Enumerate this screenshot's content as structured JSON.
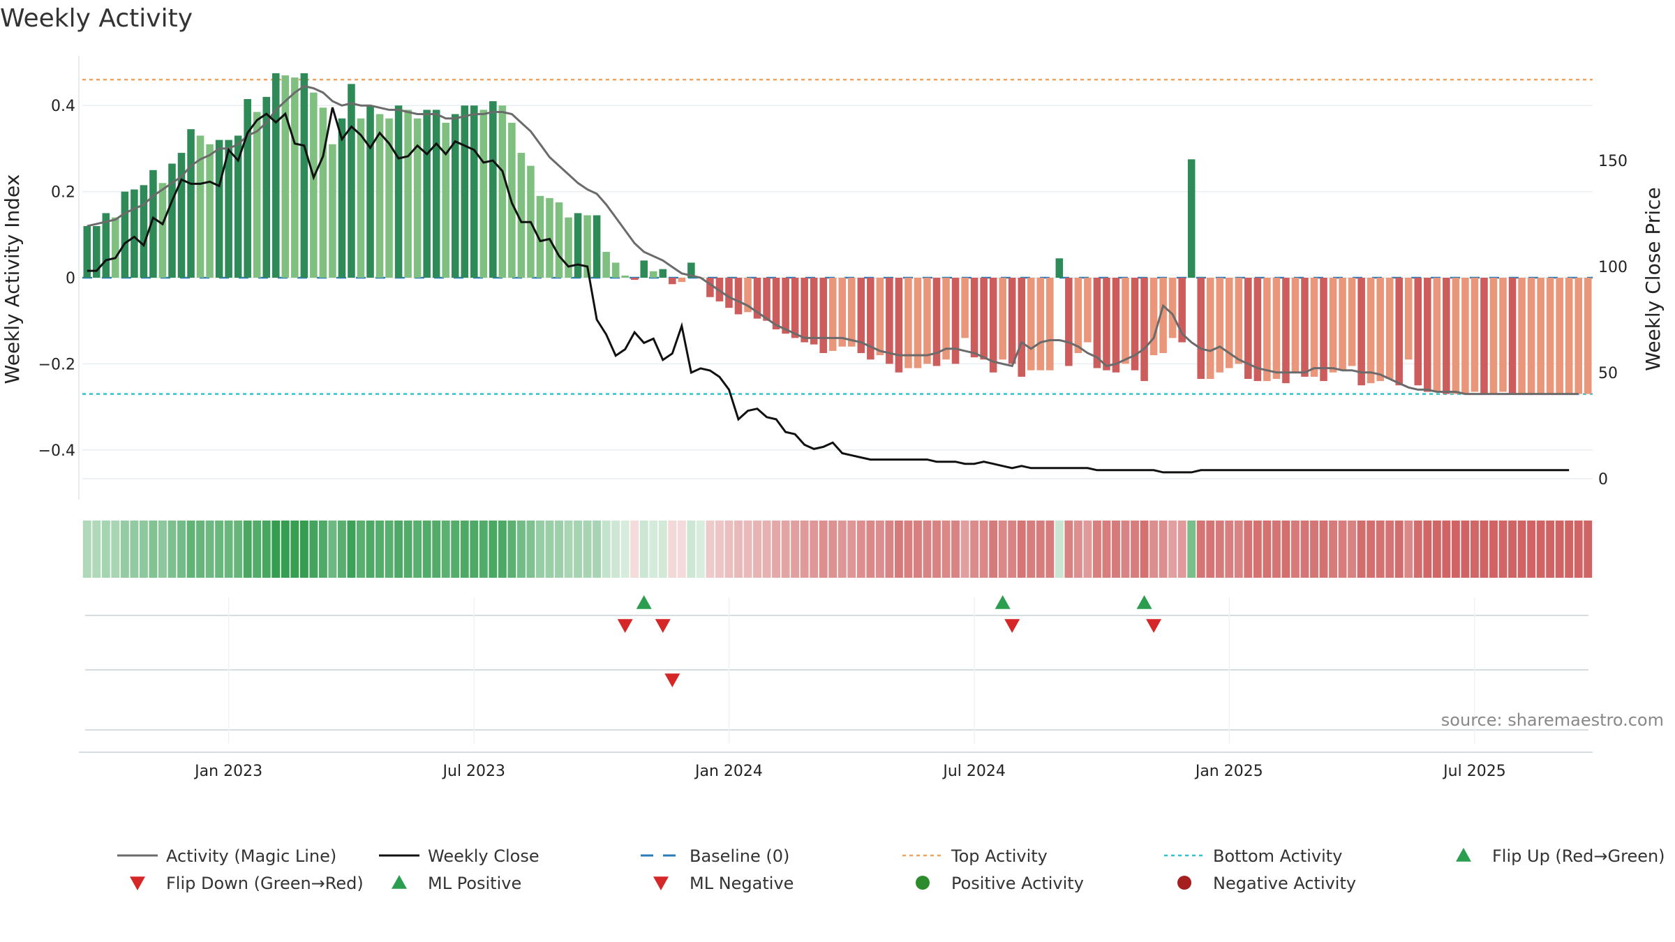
{
  "chart_data": {
    "type": "bar",
    "title": "Weekly Activity",
    "ylabel": "Weekly Activity Index",
    "y2label": "Weekly Close Price",
    "ylim": [
      -0.5,
      0.52
    ],
    "y2lim": [
      0,
      190
    ],
    "yticks": [
      {
        "v": -0.4,
        "label": "−0.4"
      },
      {
        "v": -0.2,
        "label": "−0.2"
      },
      {
        "v": 0,
        "label": "0"
      },
      {
        "v": 0.2,
        "label": "0.2"
      },
      {
        "v": 0.4,
        "label": "0.4"
      }
    ],
    "y2ticks": [
      {
        "v": 0,
        "label": "0"
      },
      {
        "v": 50,
        "label": "50"
      },
      {
        "v": 100,
        "label": "100"
      },
      {
        "v": 150,
        "label": "150"
      }
    ],
    "xticks": [
      {
        "week": 15,
        "label": "Jan 2023"
      },
      {
        "week": 41,
        "label": "Jul 2023"
      },
      {
        "week": 68,
        "label": "Jan 2024"
      },
      {
        "week": 94,
        "label": "Jul 2024"
      },
      {
        "week": 121,
        "label": "Jan 2025"
      },
      {
        "week": 147,
        "label": "Jul 2025"
      }
    ],
    "top_activity": 0.46,
    "bottom_activity": -0.27,
    "activity_values": [
      0.12,
      0.12,
      0.15,
      0.14,
      0.2,
      0.205,
      0.215,
      0.25,
      0.22,
      0.265,
      0.29,
      0.345,
      0.33,
      0.31,
      0.32,
      0.32,
      0.33,
      0.415,
      0.385,
      0.42,
      0.475,
      0.47,
      0.465,
      0.475,
      0.43,
      0.395,
      0.31,
      0.37,
      0.45,
      0.37,
      0.4,
      0.38,
      0.37,
      0.4,
      0.39,
      0.37,
      0.39,
      0.39,
      0.36,
      0.38,
      0.4,
      0.4,
      0.39,
      0.41,
      0.4,
      0.36,
      0.29,
      0.26,
      0.19,
      0.185,
      0.175,
      0.14,
      0.15,
      0.145,
      0.145,
      0.06,
      0.035,
      0.005,
      -0.005,
      0.04,
      0.015,
      0.02,
      -0.015,
      -0.01,
      0.035,
      -0.0,
      -0.045,
      -0.055,
      -0.07,
      -0.085,
      -0.08,
      -0.095,
      -0.1,
      -0.12,
      -0.13,
      -0.14,
      -0.15,
      -0.155,
      -0.175,
      -0.17,
      -0.16,
      -0.16,
      -0.175,
      -0.19,
      -0.18,
      -0.2,
      -0.22,
      -0.21,
      -0.21,
      -0.2,
      -0.205,
      -0.19,
      -0.2,
      -0.14,
      -0.185,
      -0.19,
      -0.22,
      -0.19,
      -0.2,
      -0.23,
      -0.215,
      -0.215,
      -0.215,
      0.045,
      -0.205,
      -0.175,
      -0.15,
      -0.21,
      -0.215,
      -0.22,
      -0.2,
      -0.215,
      -0.24,
      -0.18,
      -0.175,
      -0.14,
      -0.15,
      0.275,
      -0.235,
      -0.235,
      -0.22,
      -0.21,
      -0.2,
      -0.235,
      -0.24,
      -0.24,
      -0.235,
      -0.245,
      -0.22,
      -0.23,
      -0.23,
      -0.24,
      -0.22,
      -0.215,
      -0.205,
      -0.25,
      -0.245,
      -0.24,
      -0.235,
      -0.25,
      -0.19,
      -0.25,
      -0.265,
      -0.265,
      -0.27,
      -0.27,
      -0.27,
      -0.265,
      -0.27,
      -0.27,
      -0.265,
      -0.27,
      -0.27,
      -0.27,
      -0.27,
      -0.27,
      -0.27,
      -0.27,
      -0.27,
      -0.27
    ],
    "magic_line": [
      0.12,
      0.125,
      0.13,
      0.135,
      0.15,
      0.16,
      0.17,
      0.19,
      0.205,
      0.22,
      0.235,
      0.26,
      0.275,
      0.285,
      0.3,
      0.3,
      0.31,
      0.33,
      0.34,
      0.36,
      0.39,
      0.41,
      0.43,
      0.445,
      0.44,
      0.43,
      0.41,
      0.4,
      0.405,
      0.4,
      0.4,
      0.395,
      0.39,
      0.39,
      0.385,
      0.38,
      0.38,
      0.38,
      0.37,
      0.37,
      0.375,
      0.38,
      0.38,
      0.385,
      0.385,
      0.38,
      0.36,
      0.34,
      0.31,
      0.28,
      0.26,
      0.24,
      0.22,
      0.205,
      0.195,
      0.17,
      0.14,
      0.11,
      0.08,
      0.06,
      0.05,
      0.04,
      0.025,
      0.01,
      0.005,
      0.0,
      -0.015,
      -0.03,
      -0.045,
      -0.055,
      -0.065,
      -0.08,
      -0.095,
      -0.11,
      -0.12,
      -0.13,
      -0.14,
      -0.14,
      -0.14,
      -0.14,
      -0.14,
      -0.145,
      -0.15,
      -0.16,
      -0.17,
      -0.175,
      -0.18,
      -0.18,
      -0.18,
      -0.18,
      -0.175,
      -0.165,
      -0.165,
      -0.17,
      -0.175,
      -0.185,
      -0.195,
      -0.2,
      -0.205,
      -0.15,
      -0.165,
      -0.15,
      -0.145,
      -0.145,
      -0.15,
      -0.16,
      -0.175,
      -0.185,
      -0.205,
      -0.2,
      -0.19,
      -0.18,
      -0.165,
      -0.14,
      -0.065,
      -0.085,
      -0.13,
      -0.15,
      -0.165,
      -0.17,
      -0.16,
      -0.175,
      -0.19,
      -0.2,
      -0.21,
      -0.215,
      -0.22,
      -0.22,
      -0.22,
      -0.22,
      -0.21,
      -0.21,
      -0.21,
      -0.215,
      -0.215,
      -0.22,
      -0.22,
      -0.225,
      -0.235,
      -0.245,
      -0.255,
      -0.26,
      -0.26,
      -0.265,
      -0.265,
      -0.265,
      -0.27,
      -0.27,
      -0.27,
      -0.27,
      -0.27,
      -0.27,
      -0.27,
      -0.27,
      -0.27,
      -0.27,
      -0.27,
      -0.27,
      -0.27
    ],
    "weekly_close": [
      98,
      98,
      103,
      104,
      111,
      114,
      110,
      123,
      120,
      131,
      141,
      139,
      139,
      140,
      138,
      155,
      150,
      163,
      169,
      172,
      168,
      172,
      158,
      157,
      142,
      152,
      175,
      160,
      166,
      162,
      156,
      163,
      158,
      151,
      152,
      157,
      153,
      158,
      153,
      159,
      157,
      155,
      149,
      150,
      145,
      130,
      121,
      121,
      112,
      113,
      105,
      100,
      101,
      100,
      75,
      68,
      58,
      61,
      69,
      64,
      66,
      56,
      59,
      72,
      50,
      52,
      51,
      48,
      42,
      28,
      32,
      33,
      29,
      28,
      22,
      21,
      16,
      14,
      15,
      17,
      12,
      11,
      10,
      9,
      9,
      9,
      9,
      9,
      9,
      9,
      8,
      8,
      8,
      7,
      7,
      8,
      7,
      6,
      5,
      6,
      5,
      5,
      5,
      5,
      5,
      5,
      5,
      4,
      4,
      4,
      4,
      4,
      4,
      4,
      3,
      3,
      3,
      3,
      4,
      4,
      4,
      4,
      4,
      4,
      4,
      4,
      4,
      4,
      4,
      4,
      4,
      4,
      4,
      4,
      4,
      4,
      4,
      4,
      4,
      4,
      4,
      4,
      4,
      4,
      4,
      4,
      4,
      4,
      4,
      4,
      4,
      4,
      4,
      4,
      4,
      4,
      4,
      4
    ],
    "flip_up_weeks": [
      59,
      97,
      112
    ],
    "flip_down_weeks": [
      57,
      61,
      98,
      113
    ],
    "ml_negative_weeks": [
      62
    ],
    "legend": [
      {
        "label": "Activity (Magic Line)",
        "marker": "line",
        "color": "#6b6b6b"
      },
      {
        "label": "Weekly Close",
        "marker": "line",
        "color": "#111111"
      },
      {
        "label": "Baseline (0)",
        "marker": "dash",
        "color": "#2b7bb9"
      },
      {
        "label": "Top Activity",
        "marker": "dot-line",
        "color": "#f0a35e"
      },
      {
        "label": "Bottom Activity",
        "marker": "dot-line",
        "color": "#2ec4cf"
      },
      {
        "label": "Flip Up (Red→Green)",
        "marker": "tri-up",
        "color": "#2a9d4f"
      },
      {
        "label": "Flip Down (Green→Red)",
        "marker": "tri-down",
        "color": "#d62728"
      },
      {
        "label": "ML Positive",
        "marker": "tri-up",
        "color": "#2a9d4f"
      },
      {
        "label": "ML Negative",
        "marker": "tri-down",
        "color": "#d62728"
      },
      {
        "label": "Positive Activity",
        "marker": "circle",
        "color": "#2c8c2c"
      },
      {
        "label": "Negative Activity",
        "marker": "circle",
        "color": "#a51f1f"
      }
    ],
    "source_text": "source: sharemaestro.com"
  },
  "colors": {
    "pos_dark": "#2e8b57",
    "pos_light": "#7fbf7f",
    "neg_dark": "#cd5c5c",
    "neg_light": "#e9967a"
  }
}
